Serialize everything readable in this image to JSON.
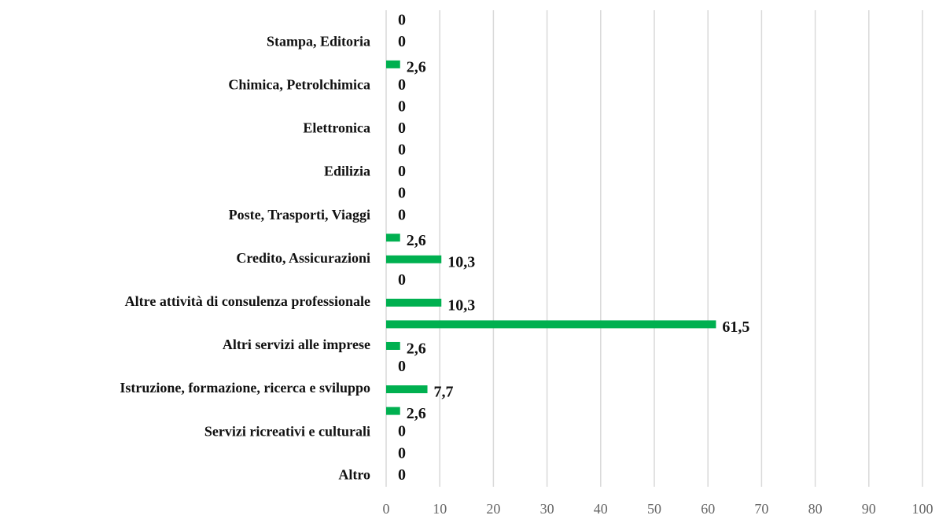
{
  "chart_data": {
    "type": "bar",
    "orientation": "horizontal",
    "categories": [
      null,
      "Stampa, Editoria",
      null,
      "Chimica, Petrolchimica",
      null,
      "Elettronica",
      null,
      "Edilizia",
      null,
      "Poste, Trasporti, Viaggi",
      null,
      "Credito, Assicurazioni",
      null,
      "Altre attività di consulenza professionale",
      null,
      "Altri servizi alle imprese",
      null,
      "Istruzione, formazione, ricerca e sviluppo",
      null,
      "Servizi ricreativi e culturali",
      null,
      "Altro"
    ],
    "values": [
      0,
      0,
      2.6,
      0,
      0,
      0,
      0,
      0,
      0,
      0,
      2.6,
      10.3,
      0,
      10.3,
      61.5,
      2.6,
      0,
      7.7,
      2.6,
      0,
      0,
      0
    ],
    "value_labels": [
      "0",
      "0",
      "2,6",
      "0",
      "0",
      "0",
      "0",
      "0",
      "0",
      "0",
      "2,6",
      "10,3",
      "0",
      "10,3",
      "61,5",
      "2,6",
      "0",
      "7,7",
      "2,6",
      "0",
      "0",
      "0"
    ],
    "color": "#00b050",
    "xlim": [
      0,
      100
    ],
    "xticks": [
      0,
      10,
      20,
      30,
      40,
      50,
      60,
      70,
      80,
      90,
      100
    ],
    "grid": true
  }
}
